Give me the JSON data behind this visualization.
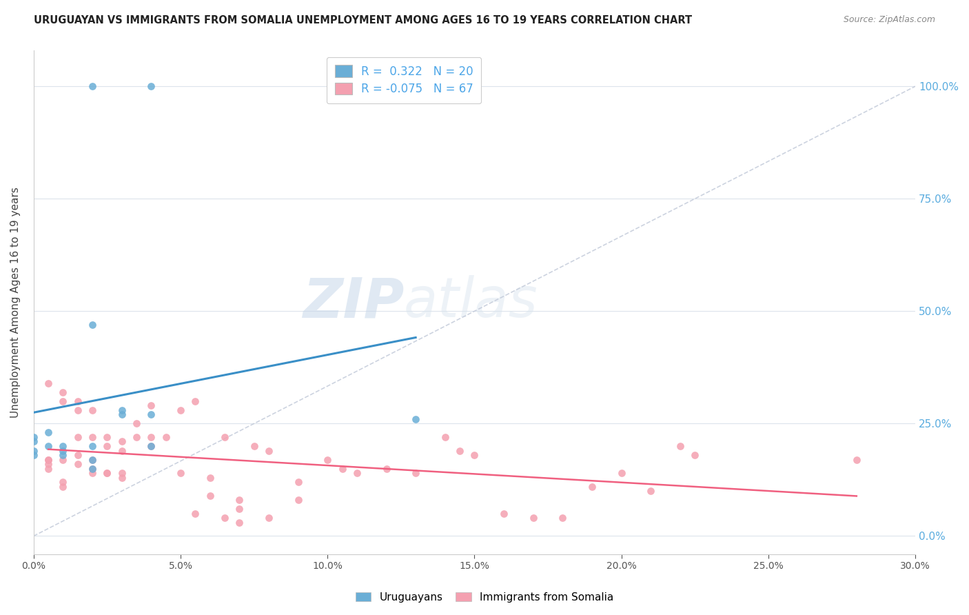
{
  "title": "URUGUAYAN VS IMMIGRANTS FROM SOMALIA UNEMPLOYMENT AMONG AGES 16 TO 19 YEARS CORRELATION CHART",
  "source": "Source: ZipAtlas.com",
  "ylabel_label": "Unemployment Among Ages 16 to 19 years",
  "xmin": 0.0,
  "xmax": 0.3,
  "ymin": -0.04,
  "ymax": 1.08,
  "legend1_r": "0.322",
  "legend1_n": "20",
  "legend2_r": "-0.075",
  "legend2_n": "67",
  "color_uruguayan": "#6aaed6",
  "color_somalia": "#f4a0b0",
  "color_line_uruguayan": "#3a8fc7",
  "color_line_somalia": "#f06080",
  "color_dashed": "#c0c8d8",
  "watermark_zip": "ZIP",
  "watermark_atlas": "atlas",
  "uruguayan_x": [
    0.02,
    0.04,
    0.0,
    0.0,
    0.0,
    0.005,
    0.005,
    0.01,
    0.01,
    0.01,
    0.02,
    0.02,
    0.02,
    0.03,
    0.03,
    0.04,
    0.04,
    0.13,
    0.02,
    0.0
  ],
  "uruguayan_y": [
    1.0,
    1.0,
    0.21,
    0.22,
    0.18,
    0.2,
    0.23,
    0.19,
    0.2,
    0.18,
    0.2,
    0.17,
    0.15,
    0.28,
    0.27,
    0.27,
    0.2,
    0.26,
    0.47,
    0.19
  ],
  "somalia_x": [
    0.005,
    0.01,
    0.01,
    0.015,
    0.015,
    0.02,
    0.02,
    0.025,
    0.025,
    0.03,
    0.03,
    0.035,
    0.04,
    0.04,
    0.045,
    0.05,
    0.055,
    0.06,
    0.065,
    0.07,
    0.07,
    0.075,
    0.08,
    0.09,
    0.09,
    0.1,
    0.105,
    0.11,
    0.12,
    0.13,
    0.14,
    0.145,
    0.15,
    0.16,
    0.17,
    0.18,
    0.19,
    0.2,
    0.21,
    0.22,
    0.225,
    0.005,
    0.005,
    0.005,
    0.01,
    0.01,
    0.015,
    0.015,
    0.02,
    0.02,
    0.025,
    0.025,
    0.03,
    0.03,
    0.035,
    0.04,
    0.05,
    0.055,
    0.06,
    0.065,
    0.07,
    0.08,
    0.28,
    0.005,
    0.01,
    0.015,
    0.02
  ],
  "somalia_y": [
    0.34,
    0.32,
    0.3,
    0.3,
    0.28,
    0.28,
    0.22,
    0.22,
    0.2,
    0.21,
    0.19,
    0.25,
    0.29,
    0.22,
    0.22,
    0.28,
    0.3,
    0.09,
    0.22,
    0.08,
    0.06,
    0.2,
    0.19,
    0.12,
    0.08,
    0.17,
    0.15,
    0.14,
    0.15,
    0.14,
    0.22,
    0.19,
    0.18,
    0.05,
    0.04,
    0.04,
    0.11,
    0.14,
    0.1,
    0.2,
    0.18,
    0.17,
    0.16,
    0.15,
    0.12,
    0.11,
    0.22,
    0.18,
    0.17,
    0.15,
    0.14,
    0.14,
    0.14,
    0.13,
    0.22,
    0.2,
    0.14,
    0.05,
    0.13,
    0.04,
    0.03,
    0.04,
    0.17,
    0.17,
    0.17,
    0.16,
    0.14
  ]
}
